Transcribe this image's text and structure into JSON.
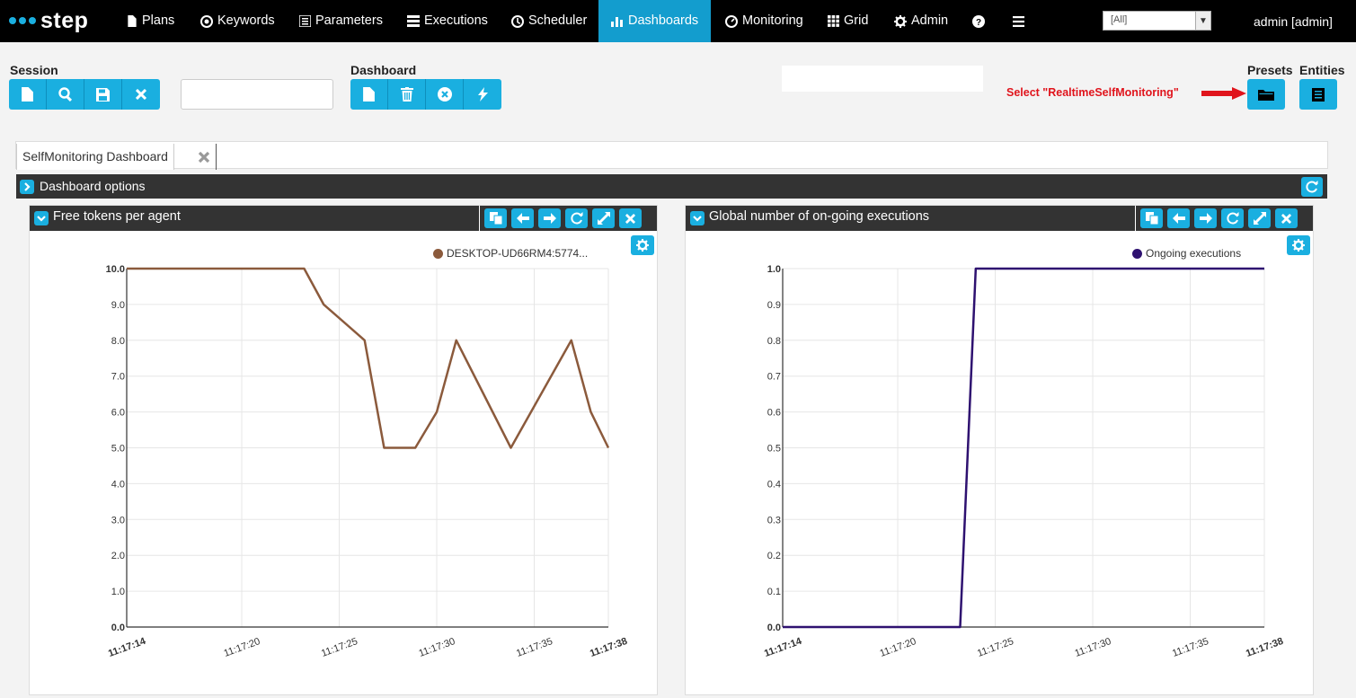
{
  "app": {
    "logo_text": "step"
  },
  "nav": {
    "items": [
      {
        "label": "Plans",
        "icon": "file-icon"
      },
      {
        "label": "Keywords",
        "icon": "target-icon"
      },
      {
        "label": "Parameters",
        "icon": "list-icon"
      },
      {
        "label": "Executions",
        "icon": "tasks-icon"
      },
      {
        "label": "Scheduler",
        "icon": "clock-icon"
      },
      {
        "label": "Dashboards",
        "icon": "bar-chart-icon",
        "active": true
      },
      {
        "label": "Monitoring",
        "icon": "dashboard-icon"
      },
      {
        "label": "Grid",
        "icon": "grid-icon"
      },
      {
        "label": "Admin",
        "icon": "gear-icon"
      }
    ],
    "tenant": "[All]",
    "user": "admin [admin]"
  },
  "toolbar": {
    "session_label": "Session",
    "dashboard_label": "Dashboard",
    "presets_label": "Presets",
    "entities_label": "Entities",
    "session_input_value": "",
    "annotation": "Select \"RealtimeSelfMonitoring\""
  },
  "tabs": [
    {
      "label": "SelfMonitoring Dashboard"
    }
  ],
  "options": {
    "label": "Dashboard options"
  },
  "accent_color": "#1aafe0",
  "panels": [
    {
      "title": "Free tokens per agent",
      "legend": "DESKTOP-UD66RM4:5774...",
      "color": "#8b5a3c"
    },
    {
      "title": "Global number of on-going executions",
      "legend": "Ongoing executions",
      "color": "#2e1170"
    }
  ],
  "chart_data": [
    {
      "type": "line",
      "title": "Free tokens per agent",
      "x_ticks": [
        "11:17:14",
        "11:17:20",
        "11:17:25",
        "11:17:30",
        "11:17:35",
        "11:17:38"
      ],
      "y_ticks": [
        "0.0",
        "1.0",
        "2.0",
        "3.0",
        "4.0",
        "5.0",
        "6.0",
        "7.0",
        "8.0",
        "9.0",
        "10.0"
      ],
      "xlim": [
        0,
        24.7
      ],
      "ylim": [
        0,
        10
      ],
      "series": [
        {
          "name": "DESKTOP-UD66RM4:5774...",
          "color": "#8b5a3c",
          "x": [
            0,
            9.1,
            10.1,
            12.2,
            13.2,
            14.8,
            15.9,
            16.9,
            19.7,
            22.8,
            23.8,
            24.7
          ],
          "y": [
            10,
            10,
            9,
            8,
            5,
            5,
            6,
            8,
            5,
            8,
            6,
            5
          ]
        }
      ]
    },
    {
      "type": "line",
      "title": "Global number of on-going executions",
      "x_ticks": [
        "11:17:14",
        "11:17:20",
        "11:17:25",
        "11:17:30",
        "11:17:35",
        "11:17:38"
      ],
      "y_ticks": [
        "0.0",
        "0.1",
        "0.2",
        "0.3",
        "0.4",
        "0.5",
        "0.6",
        "0.7",
        "0.8",
        "0.9",
        "1.0"
      ],
      "xlim": [
        0,
        24.7
      ],
      "ylim": [
        0,
        1
      ],
      "series": [
        {
          "name": "Ongoing executions",
          "color": "#2e1170",
          "x": [
            0,
            9.1,
            9.9,
            24.7
          ],
          "y": [
            0,
            0,
            1,
            1
          ]
        }
      ]
    }
  ]
}
